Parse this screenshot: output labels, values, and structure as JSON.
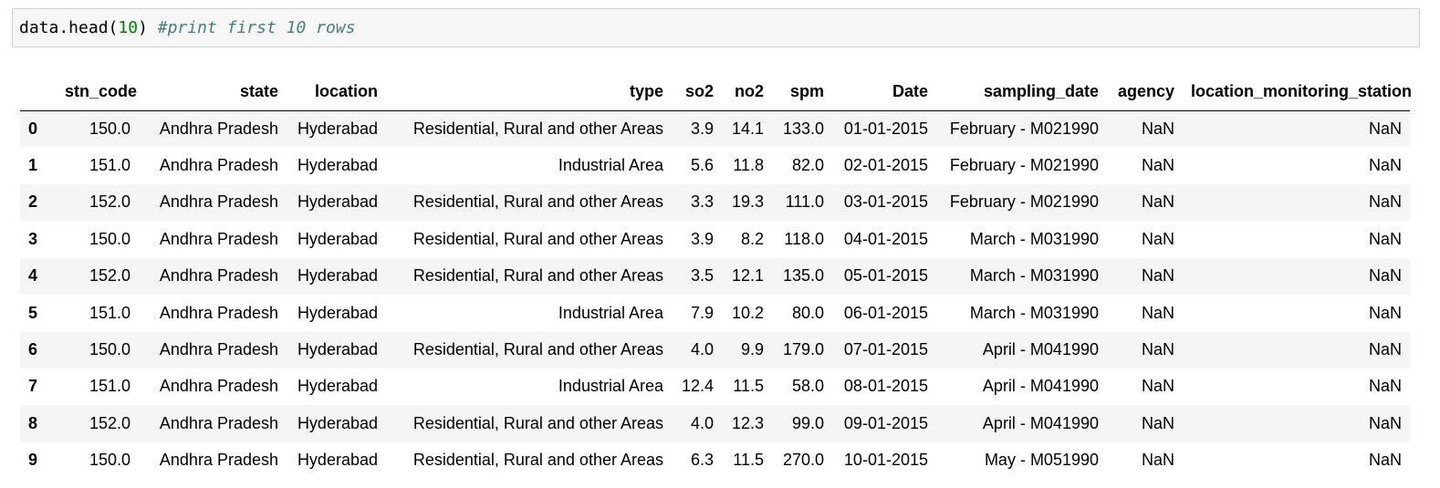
{
  "cell": {
    "code_prefix": "data.head(",
    "code_number": "10",
    "code_suffix": ") ",
    "code_comment": "#print first 10 rows"
  },
  "table": {
    "columns": [
      "",
      "stn_code",
      "state",
      "location",
      "type",
      "so2",
      "no2",
      "spm",
      "Date",
      "sampling_date",
      "agency",
      "location_monitoring_station"
    ],
    "rows": [
      {
        "index": "0",
        "stn_code": "150.0",
        "state": "Andhra Pradesh",
        "location": "Hyderabad",
        "type": "Residential, Rural and other Areas",
        "so2": "3.9",
        "no2": "14.1",
        "spm": "133.0",
        "Date": "01-01-2015",
        "sampling_date": "February - M021990",
        "agency": "NaN",
        "location_monitoring_station": "NaN"
      },
      {
        "index": "1",
        "stn_code": "151.0",
        "state": "Andhra Pradesh",
        "location": "Hyderabad",
        "type": "Industrial Area",
        "so2": "5.6",
        "no2": "11.8",
        "spm": "82.0",
        "Date": "02-01-2015",
        "sampling_date": "February - M021990",
        "agency": "NaN",
        "location_monitoring_station": "NaN"
      },
      {
        "index": "2",
        "stn_code": "152.0",
        "state": "Andhra Pradesh",
        "location": "Hyderabad",
        "type": "Residential, Rural and other Areas",
        "so2": "3.3",
        "no2": "19.3",
        "spm": "111.0",
        "Date": "03-01-2015",
        "sampling_date": "February - M021990",
        "agency": "NaN",
        "location_monitoring_station": "NaN"
      },
      {
        "index": "3",
        "stn_code": "150.0",
        "state": "Andhra Pradesh",
        "location": "Hyderabad",
        "type": "Residential, Rural and other Areas",
        "so2": "3.9",
        "no2": "8.2",
        "spm": "118.0",
        "Date": "04-01-2015",
        "sampling_date": "March - M031990",
        "agency": "NaN",
        "location_monitoring_station": "NaN"
      },
      {
        "index": "4",
        "stn_code": "152.0",
        "state": "Andhra Pradesh",
        "location": "Hyderabad",
        "type": "Residential, Rural and other Areas",
        "so2": "3.5",
        "no2": "12.1",
        "spm": "135.0",
        "Date": "05-01-2015",
        "sampling_date": "March - M031990",
        "agency": "NaN",
        "location_monitoring_station": "NaN"
      },
      {
        "index": "5",
        "stn_code": "151.0",
        "state": "Andhra Pradesh",
        "location": "Hyderabad",
        "type": "Industrial Area",
        "so2": "7.9",
        "no2": "10.2",
        "spm": "80.0",
        "Date": "06-01-2015",
        "sampling_date": "March - M031990",
        "agency": "NaN",
        "location_monitoring_station": "NaN"
      },
      {
        "index": "6",
        "stn_code": "150.0",
        "state": "Andhra Pradesh",
        "location": "Hyderabad",
        "type": "Residential, Rural and other Areas",
        "so2": "4.0",
        "no2": "9.9",
        "spm": "179.0",
        "Date": "07-01-2015",
        "sampling_date": "April - M041990",
        "agency": "NaN",
        "location_monitoring_station": "NaN"
      },
      {
        "index": "7",
        "stn_code": "151.0",
        "state": "Andhra Pradesh",
        "location": "Hyderabad",
        "type": "Industrial Area",
        "so2": "12.4",
        "no2": "11.5",
        "spm": "58.0",
        "Date": "08-01-2015",
        "sampling_date": "April - M041990",
        "agency": "NaN",
        "location_monitoring_station": "NaN"
      },
      {
        "index": "8",
        "stn_code": "152.0",
        "state": "Andhra Pradesh",
        "location": "Hyderabad",
        "type": "Residential, Rural and other Areas",
        "so2": "4.0",
        "no2": "12.3",
        "spm": "99.0",
        "Date": "09-01-2015",
        "sampling_date": "April - M041990",
        "agency": "NaN",
        "location_monitoring_station": "NaN"
      },
      {
        "index": "9",
        "stn_code": "150.0",
        "state": "Andhra Pradesh",
        "location": "Hyderabad",
        "type": "Residential, Rural and other Areas",
        "so2": "6.3",
        "no2": "11.5",
        "spm": "270.0",
        "Date": "10-01-2015",
        "sampling_date": "May - M051990",
        "agency": "NaN",
        "location_monitoring_station": "NaN"
      }
    ]
  }
}
